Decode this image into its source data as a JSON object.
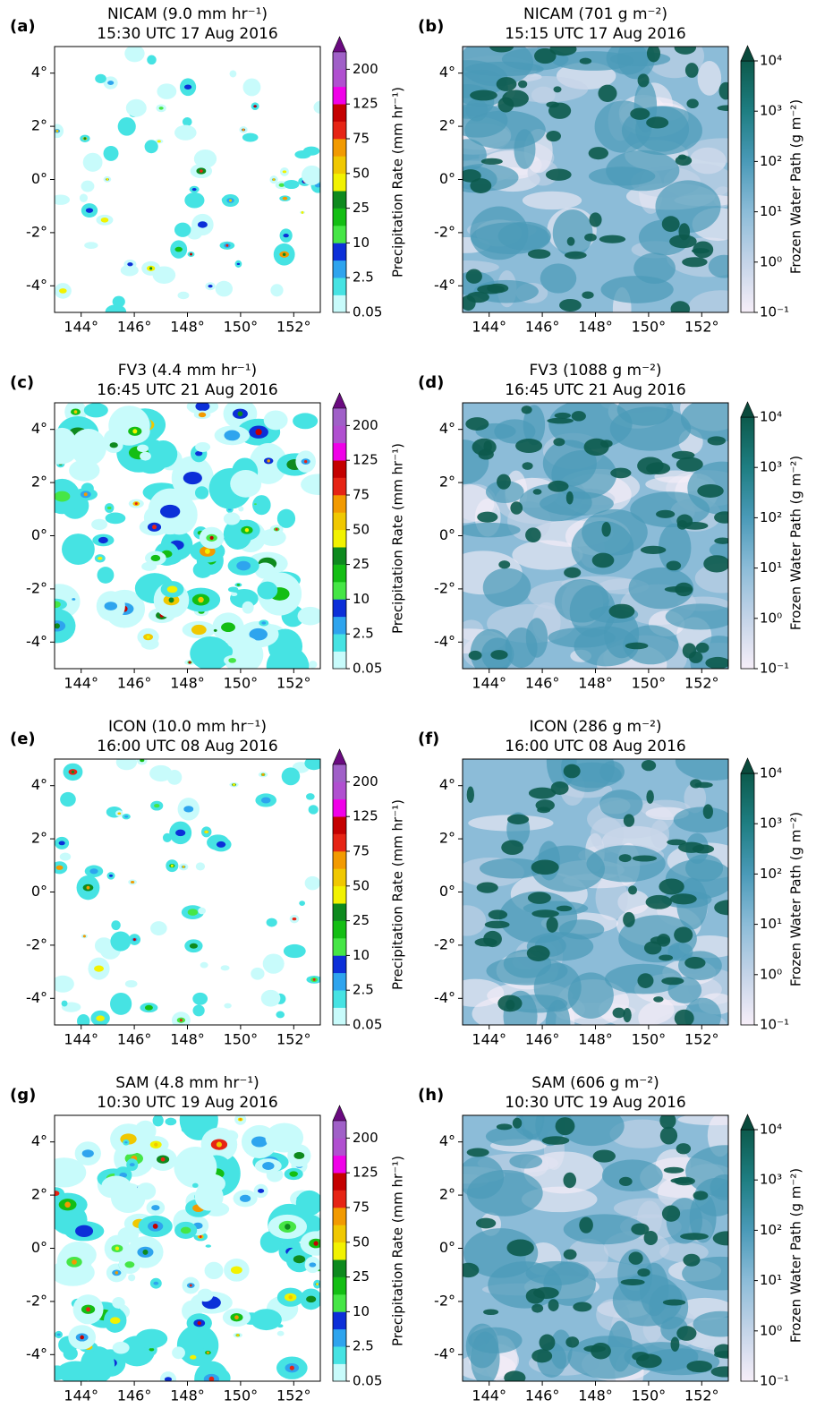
{
  "chart_data": [
    {
      "type": "heatmap",
      "panel": "(a)",
      "title": "NICAM (9.0 mm hr⁻¹)",
      "subtitle": "15:30 UTC 17 Aug 2016",
      "xlim": [
        143,
        153
      ],
      "ylim": [
        -5,
        5
      ],
      "xticks": [
        {
          "value": 144,
          "label": "144°"
        },
        {
          "value": 146,
          "label": "146°"
        },
        {
          "value": 148,
          "label": "148°"
        },
        {
          "value": 150,
          "label": "150°"
        },
        {
          "value": 152,
          "label": "152°"
        }
      ],
      "yticks": [
        {
          "value": 4,
          "label": "4°"
        },
        {
          "value": 2,
          "label": "2°"
        },
        {
          "value": 0,
          "label": "0°"
        },
        {
          "value": -2,
          "label": "-2°"
        },
        {
          "value": -4,
          "label": "-4°"
        }
      ],
      "colorbar": {
        "label": "Precipitation Rate (mm hr⁻¹)",
        "scale": "discrete",
        "ticks": [
          0.05,
          2.5,
          10,
          25,
          50,
          75,
          125,
          200
        ],
        "colors": [
          "#c8fbfb",
          "#46e3e3",
          "#2ea4ee",
          "#0c2fd8",
          "#46e646",
          "#14be14",
          "#0e8a1e",
          "#f2f200",
          "#f0c800",
          "#f29a00",
          "#e62414",
          "#c40000",
          "#f000e8",
          "#b050d0",
          "#a060c8"
        ],
        "extend_color": "#6a0a80"
      }
    },
    {
      "type": "heatmap",
      "panel": "(b)",
      "title": "NICAM (701 g m⁻²)",
      "subtitle": "15:15 UTC 17 Aug 2016",
      "xlim": [
        143,
        153
      ],
      "ylim": [
        -5,
        5
      ],
      "xticks": [
        {
          "value": 144,
          "label": "144°"
        },
        {
          "value": 146,
          "label": "146°"
        },
        {
          "value": 148,
          "label": "148°"
        },
        {
          "value": 150,
          "label": "150°"
        },
        {
          "value": 152,
          "label": "152°"
        }
      ],
      "yticks": [
        {
          "value": 4,
          "label": "4°"
        },
        {
          "value": 2,
          "label": "2°"
        },
        {
          "value": 0,
          "label": "0°"
        },
        {
          "value": -2,
          "label": "-2°"
        },
        {
          "value": -4,
          "label": "-4°"
        }
      ],
      "colorbar": {
        "label": "Frozen Water Path (g m⁻²)",
        "scale": "log",
        "lim": [
          0.1,
          10000
        ],
        "ticks": [
          {
            "value": 0.1,
            "label": "10⁻¹"
          },
          {
            "value": 1,
            "label": "10⁰"
          },
          {
            "value": 10,
            "label": "10¹"
          },
          {
            "value": 100,
            "label": "10²"
          },
          {
            "value": 1000,
            "label": "10³"
          },
          {
            "value": 10000,
            "label": "10⁴"
          }
        ],
        "colors": [
          "#f6eef8",
          "#c4d4e8",
          "#8cbcd8",
          "#4a9ab8",
          "#1e7e82",
          "#0c5a4c"
        ],
        "extend_color": "#0a4a3c"
      }
    },
    {
      "type": "heatmap",
      "panel": "(c)",
      "title": "FV3 (4.4 mm hr⁻¹)",
      "subtitle": "16:45 UTC 21 Aug 2016",
      "xlim": [
        143,
        153
      ],
      "ylim": [
        -5,
        5
      ],
      "xticks": [
        {
          "value": 144,
          "label": "144°"
        },
        {
          "value": 146,
          "label": "146°"
        },
        {
          "value": 148,
          "label": "148°"
        },
        {
          "value": 150,
          "label": "150°"
        },
        {
          "value": 152,
          "label": "152°"
        }
      ],
      "yticks": [
        {
          "value": 4,
          "label": "4°"
        },
        {
          "value": 2,
          "label": "2°"
        },
        {
          "value": 0,
          "label": "0°"
        },
        {
          "value": -2,
          "label": "-2°"
        },
        {
          "value": -4,
          "label": "-4°"
        }
      ],
      "colorbar": {
        "label": "Precipitation Rate (mm hr⁻¹)",
        "scale": "discrete",
        "ticks": [
          0.05,
          2.5,
          10,
          25,
          50,
          75,
          125,
          200
        ],
        "colors": [
          "#c8fbfb",
          "#46e3e3",
          "#2ea4ee",
          "#0c2fd8",
          "#46e646",
          "#14be14",
          "#0e8a1e",
          "#f2f200",
          "#f0c800",
          "#f29a00",
          "#e62414",
          "#c40000",
          "#f000e8",
          "#b050d0",
          "#a060c8"
        ],
        "extend_color": "#6a0a80"
      }
    },
    {
      "type": "heatmap",
      "panel": "(d)",
      "title": "FV3 (1088 g m⁻²)",
      "subtitle": "16:45 UTC 21 Aug 2016",
      "xlim": [
        143,
        153
      ],
      "ylim": [
        -5,
        5
      ],
      "xticks": [
        {
          "value": 144,
          "label": "144°"
        },
        {
          "value": 146,
          "label": "146°"
        },
        {
          "value": 148,
          "label": "148°"
        },
        {
          "value": 150,
          "label": "150°"
        },
        {
          "value": 152,
          "label": "152°"
        }
      ],
      "yticks": [
        {
          "value": 4,
          "label": "4°"
        },
        {
          "value": 2,
          "label": "2°"
        },
        {
          "value": 0,
          "label": "0°"
        },
        {
          "value": -2,
          "label": "-2°"
        },
        {
          "value": -4,
          "label": "-4°"
        }
      ],
      "colorbar": {
        "label": "Frozen Water Path (g m⁻²)",
        "scale": "log",
        "lim": [
          0.1,
          10000
        ],
        "ticks": [
          {
            "value": 0.1,
            "label": "10⁻¹"
          },
          {
            "value": 1,
            "label": "10⁰"
          },
          {
            "value": 10,
            "label": "10¹"
          },
          {
            "value": 100,
            "label": "10²"
          },
          {
            "value": 1000,
            "label": "10³"
          },
          {
            "value": 10000,
            "label": "10⁴"
          }
        ],
        "colors": [
          "#f6eef8",
          "#c4d4e8",
          "#8cbcd8",
          "#4a9ab8",
          "#1e7e82",
          "#0c5a4c"
        ],
        "extend_color": "#0a4a3c"
      }
    },
    {
      "type": "heatmap",
      "panel": "(e)",
      "title": "ICON (10.0 mm hr⁻¹)",
      "subtitle": "16:00 UTC 08 Aug 2016",
      "xlim": [
        143,
        153
      ],
      "ylim": [
        -5,
        5
      ],
      "xticks": [
        {
          "value": 144,
          "label": "144°"
        },
        {
          "value": 146,
          "label": "146°"
        },
        {
          "value": 148,
          "label": "148°"
        },
        {
          "value": 150,
          "label": "150°"
        },
        {
          "value": 152,
          "label": "152°"
        }
      ],
      "yticks": [
        {
          "value": 4,
          "label": "4°"
        },
        {
          "value": 2,
          "label": "2°"
        },
        {
          "value": 0,
          "label": "0°"
        },
        {
          "value": -2,
          "label": "-2°"
        },
        {
          "value": -4,
          "label": "-4°"
        }
      ],
      "colorbar": {
        "label": "Precipitation Rate (mm hr⁻¹)",
        "scale": "discrete",
        "ticks": [
          0.05,
          2.5,
          10,
          25,
          50,
          75,
          125,
          200
        ],
        "colors": [
          "#c8fbfb",
          "#46e3e3",
          "#2ea4ee",
          "#0c2fd8",
          "#46e646",
          "#14be14",
          "#0e8a1e",
          "#f2f200",
          "#f0c800",
          "#f29a00",
          "#e62414",
          "#c40000",
          "#f000e8",
          "#b050d0",
          "#a060c8"
        ],
        "extend_color": "#6a0a80"
      }
    },
    {
      "type": "heatmap",
      "panel": "(f)",
      "title": "ICON (286 g m⁻²)",
      "subtitle": "16:00 UTC 08 Aug 2016",
      "xlim": [
        143,
        153
      ],
      "ylim": [
        -5,
        5
      ],
      "xticks": [
        {
          "value": 144,
          "label": "144°"
        },
        {
          "value": 146,
          "label": "146°"
        },
        {
          "value": 148,
          "label": "148°"
        },
        {
          "value": 150,
          "label": "150°"
        },
        {
          "value": 152,
          "label": "152°"
        }
      ],
      "yticks": [
        {
          "value": 4,
          "label": "4°"
        },
        {
          "value": 2,
          "label": "2°"
        },
        {
          "value": 0,
          "label": "0°"
        },
        {
          "value": -2,
          "label": "-2°"
        },
        {
          "value": -4,
          "label": "-4°"
        }
      ],
      "colorbar": {
        "label": "Frozen Water Path (g m⁻²)",
        "scale": "log",
        "lim": [
          0.1,
          10000
        ],
        "ticks": [
          {
            "value": 0.1,
            "label": "10⁻¹"
          },
          {
            "value": 1,
            "label": "10⁰"
          },
          {
            "value": 10,
            "label": "10¹"
          },
          {
            "value": 100,
            "label": "10²"
          },
          {
            "value": 1000,
            "label": "10³"
          },
          {
            "value": 10000,
            "label": "10⁴"
          }
        ],
        "colors": [
          "#f6eef8",
          "#c4d4e8",
          "#8cbcd8",
          "#4a9ab8",
          "#1e7e82",
          "#0c5a4c"
        ],
        "extend_color": "#0a4a3c"
      }
    },
    {
      "type": "heatmap",
      "panel": "(g)",
      "title": "SAM (4.8 mm hr⁻¹)",
      "subtitle": "10:30 UTC 19 Aug 2016",
      "xlim": [
        143,
        153
      ],
      "ylim": [
        -5,
        5
      ],
      "xticks": [
        {
          "value": 144,
          "label": "144°"
        },
        {
          "value": 146,
          "label": "146°"
        },
        {
          "value": 148,
          "label": "148°"
        },
        {
          "value": 150,
          "label": "150°"
        },
        {
          "value": 152,
          "label": "152°"
        }
      ],
      "yticks": [
        {
          "value": 4,
          "label": "4°"
        },
        {
          "value": 2,
          "label": "2°"
        },
        {
          "value": 0,
          "label": "0°"
        },
        {
          "value": -2,
          "label": "-2°"
        },
        {
          "value": -4,
          "label": "-4°"
        }
      ],
      "colorbar": {
        "label": "Precipitation Rate (mm hr⁻¹)",
        "scale": "discrete",
        "ticks": [
          0.05,
          2.5,
          10,
          25,
          50,
          75,
          125,
          200
        ],
        "colors": [
          "#c8fbfb",
          "#46e3e3",
          "#2ea4ee",
          "#0c2fd8",
          "#46e646",
          "#14be14",
          "#0e8a1e",
          "#f2f200",
          "#f0c800",
          "#f29a00",
          "#e62414",
          "#c40000",
          "#f000e8",
          "#b050d0",
          "#a060c8"
        ],
        "extend_color": "#6a0a80"
      }
    },
    {
      "type": "heatmap",
      "panel": "(h)",
      "title": "SAM (606 g m⁻²)",
      "subtitle": "10:30 UTC 19 Aug 2016",
      "xlim": [
        143,
        153
      ],
      "ylim": [
        -5,
        5
      ],
      "xticks": [
        {
          "value": 144,
          "label": "144°"
        },
        {
          "value": 146,
          "label": "146°"
        },
        {
          "value": 148,
          "label": "148°"
        },
        {
          "value": 150,
          "label": "150°"
        },
        {
          "value": 152,
          "label": "152°"
        }
      ],
      "yticks": [
        {
          "value": 4,
          "label": "4°"
        },
        {
          "value": 2,
          "label": "2°"
        },
        {
          "value": 0,
          "label": "0°"
        },
        {
          "value": -2,
          "label": "-2°"
        },
        {
          "value": -4,
          "label": "-4°"
        }
      ],
      "colorbar": {
        "label": "Frozen Water Path (g m⁻²)",
        "scale": "log",
        "lim": [
          0.1,
          10000
        ],
        "ticks": [
          {
            "value": 0.1,
            "label": "10⁻¹"
          },
          {
            "value": 1,
            "label": "10⁰"
          },
          {
            "value": 10,
            "label": "10¹"
          },
          {
            "value": 100,
            "label": "10²"
          },
          {
            "value": 1000,
            "label": "10³"
          },
          {
            "value": 10000,
            "label": "10⁴"
          }
        ],
        "colors": [
          "#f6eef8",
          "#c4d4e8",
          "#8cbcd8",
          "#4a9ab8",
          "#1e7e82",
          "#0c5a4c"
        ],
        "extend_color": "#0a4a3c"
      }
    }
  ]
}
